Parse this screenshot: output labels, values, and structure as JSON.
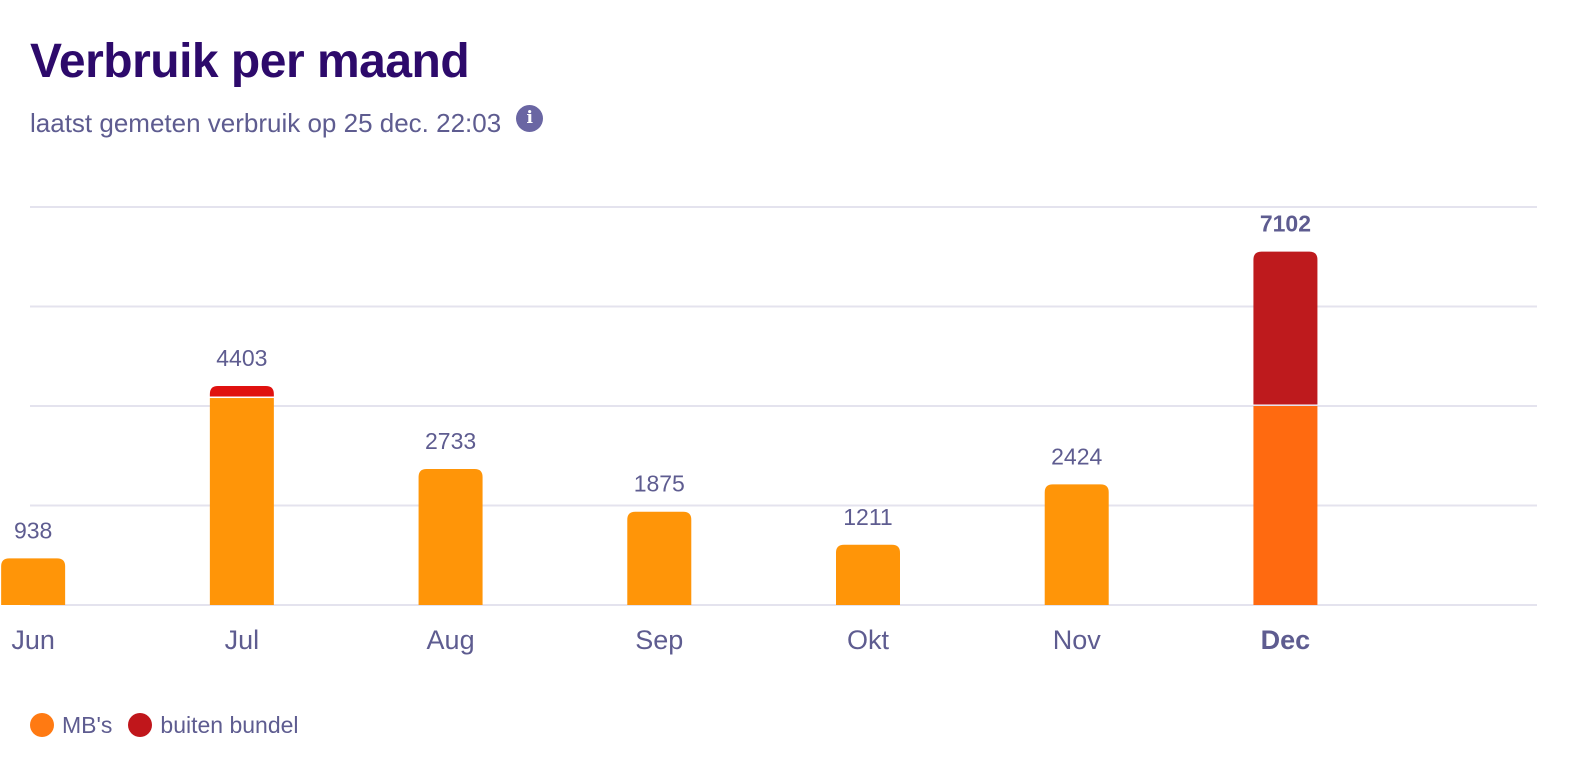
{
  "header": {
    "title": "Verbruik per maand",
    "subtitle": "laatst gemeten verbruik op 25 dec. 22:03",
    "info_icon": "info-icon"
  },
  "colors": {
    "mbs": "#FF9508",
    "mbs_current": "#FF6A10",
    "buiten_bundel": "#BE1A1D",
    "buiten_bundel_bright": "#E0110F",
    "legend_mbs": "#FF7A12",
    "legend_buiten": "#C0161B",
    "gridline": "#E4E3EE",
    "text": "#5E5C90",
    "title": "#2D0A6B"
  },
  "chart_data": {
    "type": "bar",
    "stacked": true,
    "categories": [
      "Jun",
      "Jul",
      "Aug",
      "Sep",
      "Okt",
      "Nov",
      "Dec"
    ],
    "totals": [
      938,
      4403,
      2733,
      1875,
      1211,
      2424,
      7102
    ],
    "series": [
      {
        "name": "MB's",
        "values": [
          938,
          4160,
          2733,
          1875,
          1211,
          2424,
          4000
        ]
      },
      {
        "name": "buiten bundel",
        "values": [
          0,
          243,
          0,
          0,
          0,
          0,
          3102
        ]
      }
    ],
    "highlighted_category": "Dec",
    "ylim": [
      0,
      8000
    ],
    "gridlines": [
      0,
      2000,
      4000,
      6000,
      8000
    ],
    "y_tick_labels_visible": false,
    "grid": true,
    "legend_position": "bottom-left"
  },
  "legend": {
    "items": [
      {
        "label": "MB's"
      },
      {
        "label": "buiten bundel"
      }
    ]
  }
}
